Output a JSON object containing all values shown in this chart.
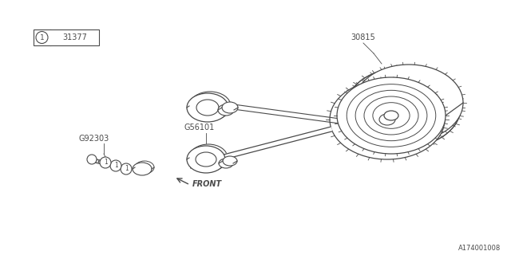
{
  "bg_color": "#ffffff",
  "line_color": "#4a4a4a",
  "text_color": "#4a4a4a",
  "title_box_label": "31377",
  "part_label_1": "30815",
  "part_label_2": "G56101",
  "part_label_3": "G92303",
  "front_label": "FRONT",
  "diagram_id": "A174001008",
  "circle_number": "1",
  "figsize": [
    6.4,
    3.2
  ],
  "dpi": 100
}
